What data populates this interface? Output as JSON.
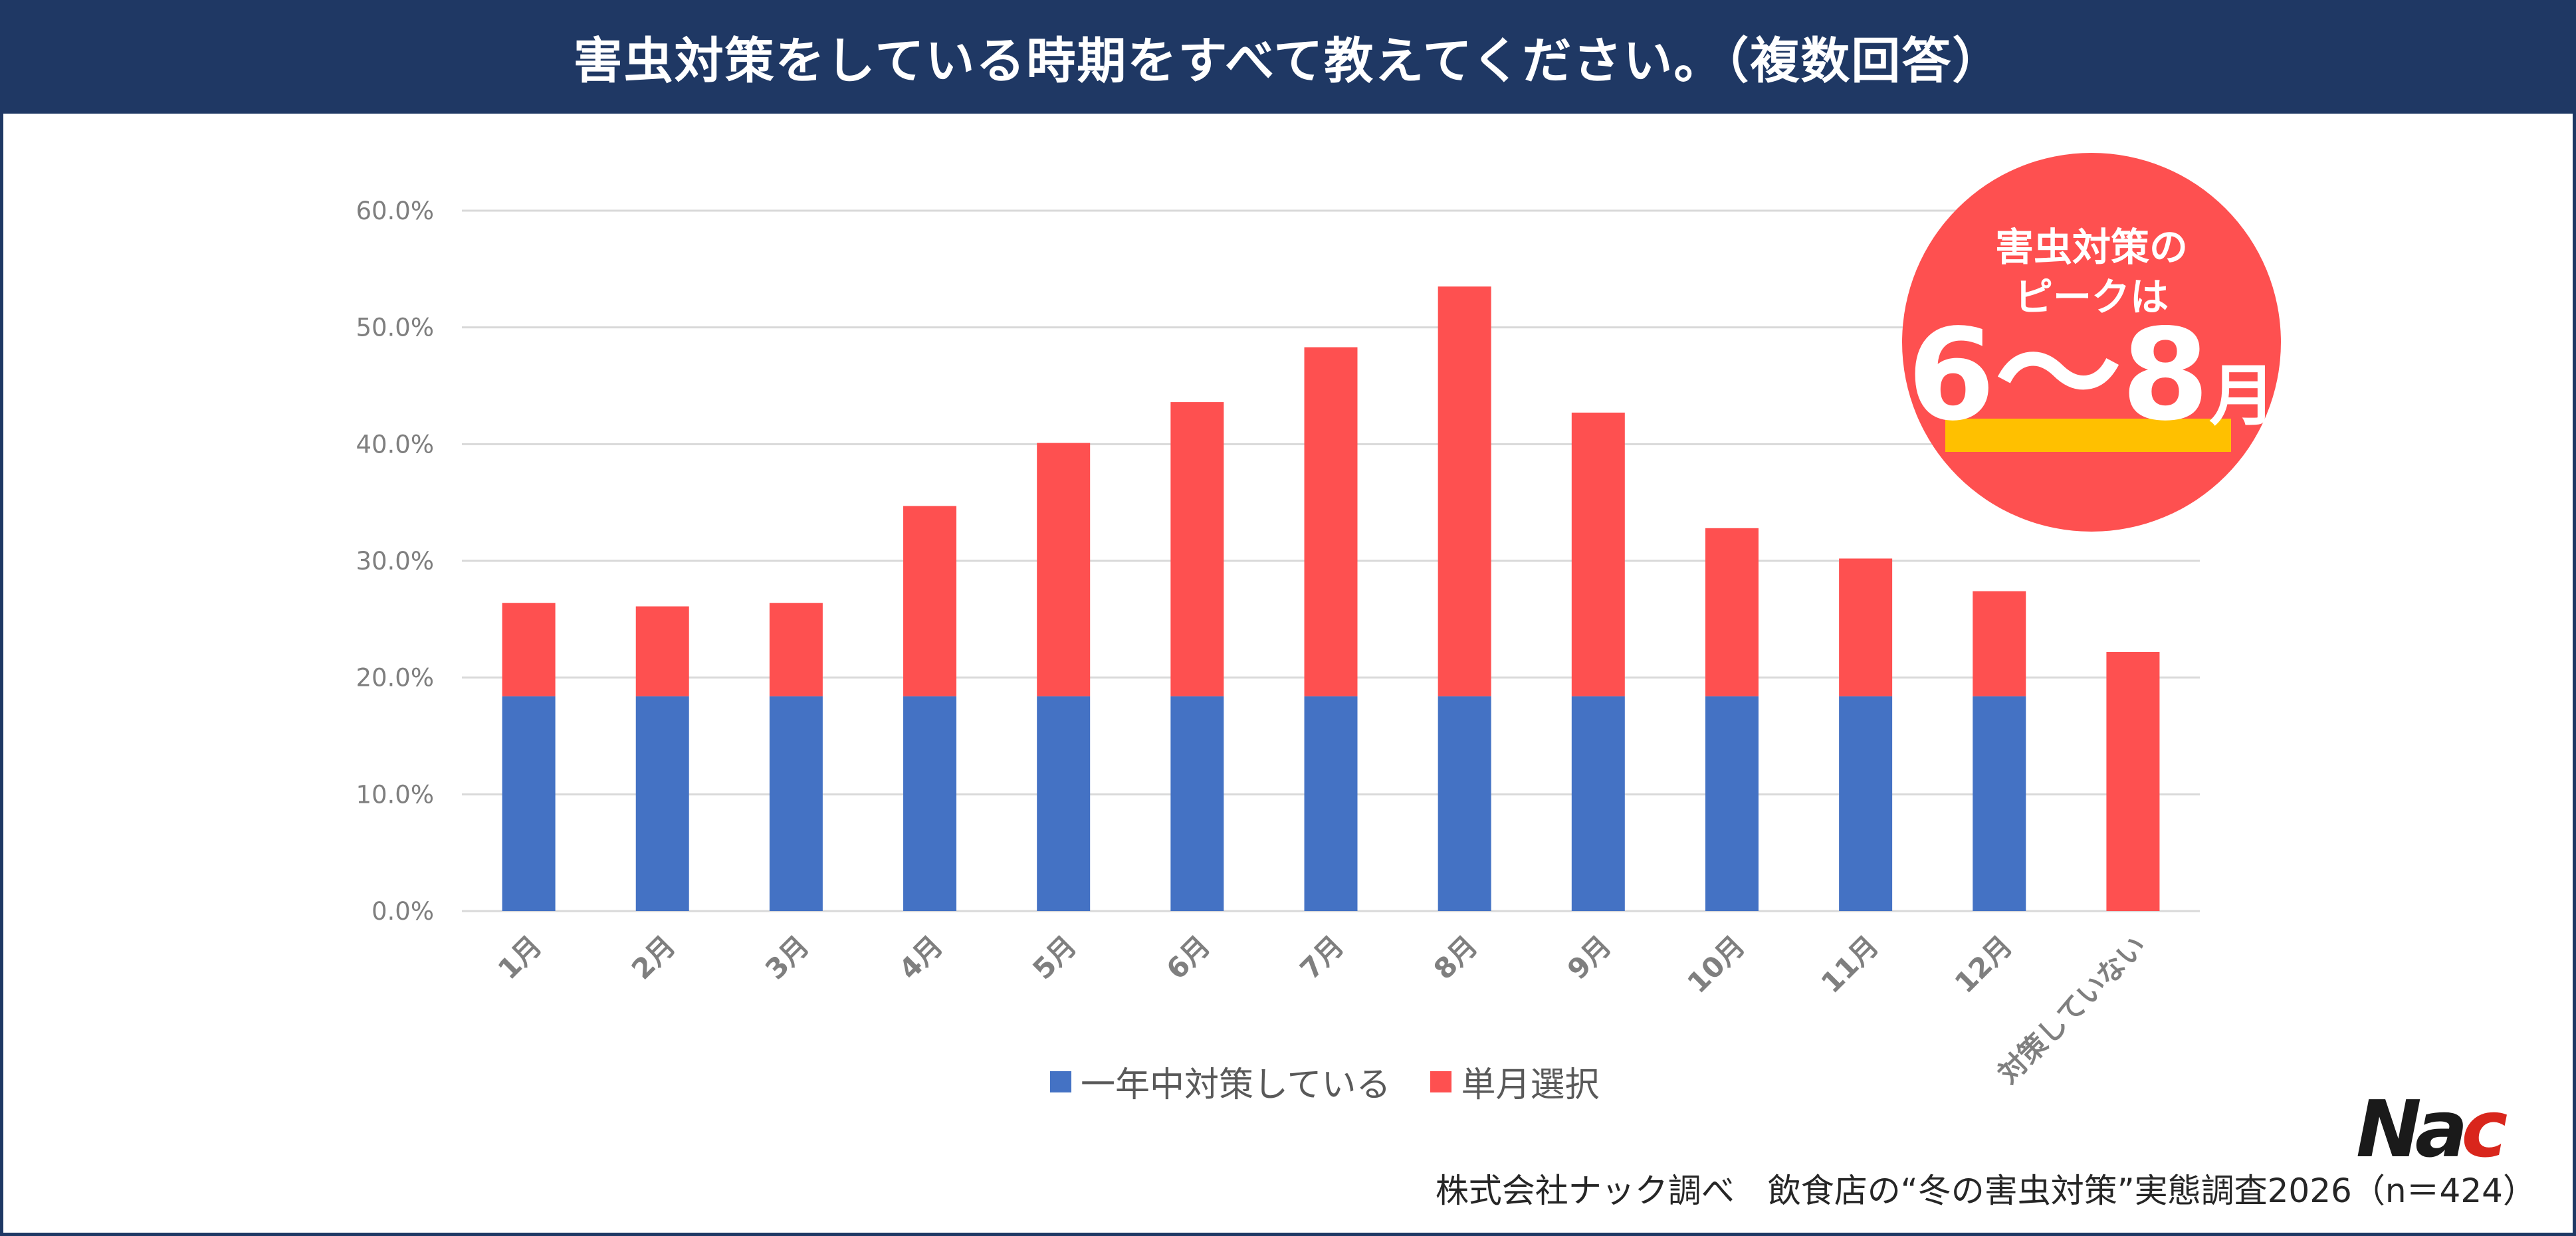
{
  "header": {
    "title": "害虫対策をしている時期をすべて教えてください。（複数回答）"
  },
  "badge": {
    "line1": "害虫対策の",
    "line2": "ピークは",
    "big_value": "6〜8",
    "big_unit": "月"
  },
  "logo": {
    "part1": "Na",
    "part2": "c"
  },
  "source": "株式会社ナック調べ　飲食店の“冬の害虫対策”実態調査2026（n＝424）",
  "colors": {
    "header_bg": "#1f3864",
    "series_year_round": "#4472c4",
    "series_month": "#fe5050",
    "badge": "#fe5050",
    "highlight": "#ffc000"
  },
  "chart_data": {
    "type": "bar",
    "stacked": true,
    "title": "",
    "xlabel": "",
    "ylabel": "",
    "ylim": [
      0,
      60
    ],
    "y_ticks": [
      "0.0%",
      "10.0%",
      "20.0%",
      "30.0%",
      "40.0%",
      "50.0%",
      "60.0%"
    ],
    "y_tick_values": [
      0,
      10,
      20,
      30,
      40,
      50,
      60
    ],
    "grid": true,
    "legend_position": "bottom",
    "categories": [
      "1月",
      "2月",
      "3月",
      "4月",
      "5月",
      "6月",
      "7月",
      "8月",
      "9月",
      "10月",
      "11月",
      "12月",
      "対策していない"
    ],
    "series": [
      {
        "name": "一年中対策している",
        "color": "#4472c4",
        "values": [
          18.4,
          18.4,
          18.4,
          18.4,
          18.4,
          18.4,
          18.4,
          18.4,
          18.4,
          18.4,
          18.4,
          18.4,
          0
        ]
      },
      {
        "name": "単月選択",
        "color": "#fe5050",
        "values": [
          8.0,
          7.7,
          8.0,
          16.3,
          21.7,
          25.2,
          29.9,
          35.1,
          24.3,
          14.4,
          11.8,
          9.0,
          22.2
        ]
      }
    ]
  }
}
